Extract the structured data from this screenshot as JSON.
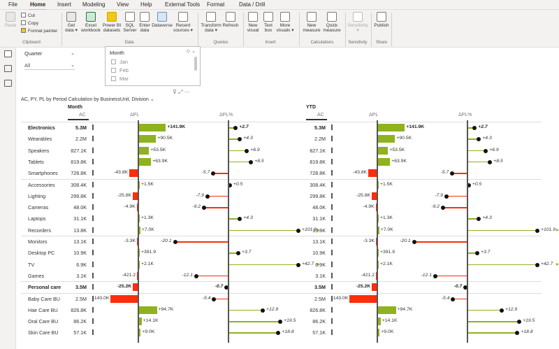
{
  "menu": [
    "File",
    "Home",
    "Insert",
    "Modeling",
    "View",
    "Help",
    "External Tools",
    "Format",
    "Data / Drill"
  ],
  "menu_active": "Home",
  "ribbon": {
    "paste": "Paste",
    "cut": "Cut",
    "copy": "Copy",
    "format_painter": "Format painter",
    "clipboard_group": "Clipboard",
    "get_data": "Get data ▾",
    "excel": "Excel workbook",
    "powerbi": "Power BI datasets",
    "sql": "SQL Server",
    "enter_data": "Enter data",
    "dataverse": "Dataverse",
    "recent": "Recent sources ▾",
    "data_group": "Data",
    "transform": "Transform data ▾",
    "refresh": "Refresh",
    "queries_group": "Queries",
    "new_visual": "New visual",
    "text_box": "Text box",
    "more_visuals": "More visuals ▾",
    "insert_group": "Insert",
    "new_measure": "New measure",
    "quick_measure": "Quick measure",
    "calc_group": "Calculations",
    "sensitivity": "Sensitivity ▾",
    "sensitivity_group": "Sensitivity",
    "publish": "Publish",
    "share_group": "Share"
  },
  "slicers": {
    "quarter_title": "Quarter",
    "quarter_value": "All",
    "month_title": "Month",
    "months": [
      "Jan",
      "Feb",
      "Mar"
    ]
  },
  "visual": {
    "title": "AC, PY, PL by Period Calculation by BusinessUnit, Division",
    "section_month": "Month",
    "section_ytd": "YTD",
    "col_ac": "AC",
    "col_dpl": "ΔPL",
    "col_dplp": "ΔPL%"
  },
  "chart_data": {
    "type": "table",
    "columns": [
      "AC",
      "ΔPL",
      "ΔPL%"
    ],
    "rows": [
      {
        "name": "Electronics",
        "bold": true,
        "ac": "5.3M",
        "dpl": 141.9,
        "dpl_label": "+141.9K",
        "pct": 2.7,
        "pct_label": "+2.7"
      },
      {
        "name": "Wearables",
        "ac": "2.2M",
        "dpl": 90.5,
        "dpl_label": "+90.5K",
        "pct": 4.3,
        "pct_label": "+4.3"
      },
      {
        "name": "Speakers",
        "ac": "827.1K",
        "dpl": 53.5,
        "dpl_label": "+53.5K",
        "pct": 6.9,
        "pct_label": "+6.9"
      },
      {
        "name": "Tablets",
        "ac": "819.8K",
        "dpl": 63.9,
        "dpl_label": "+63.9K",
        "pct": 8.5,
        "pct_label": "+8.5"
      },
      {
        "name": "Smartphones",
        "ac": "728.8K",
        "dpl": -43.8,
        "dpl_label": "-43.8K",
        "pct": -5.7,
        "pct_label": "-5.7"
      },
      {
        "name": "Accessories",
        "ac": "308.4K",
        "dpl": 1.5,
        "dpl_label": "+1.5K",
        "pct": 0.5,
        "pct_label": "+0.5"
      },
      {
        "name": "Lighting",
        "ac": "299.8K",
        "dpl": -25.8,
        "dpl_label": "-25.8K",
        "pct": -7.9,
        "pct_label": "-7.9"
      },
      {
        "name": "Cameras",
        "ac": "48.0K",
        "dpl": -4.9,
        "dpl_label": "-4.9K",
        "pct": -9.2,
        "pct_label": "-9.2"
      },
      {
        "name": "Laptops",
        "ac": "31.1K",
        "dpl": 1.3,
        "dpl_label": "+1.3K",
        "pct": 4.3,
        "pct_label": "+4.3"
      },
      {
        "name": "Recorders",
        "ac": "13.8K",
        "dpl": 7.0,
        "dpl_label": "+7.0K",
        "pct": 101.9,
        "pct_label": "+101.9"
      },
      {
        "name": "Monitors",
        "ac": "13.1K",
        "dpl": -3.3,
        "dpl_label": "-3.3K",
        "pct": -20.1,
        "pct_label": "-20.1"
      },
      {
        "name": "Desktop PC",
        "ac": "10.9K",
        "dpl": 0.3919,
        "dpl_label": "+391.9",
        "pct": 3.7,
        "pct_label": "+3.7"
      },
      {
        "name": "TV",
        "ac": "6.9K",
        "dpl": 2.1,
        "dpl_label": "+2.1K",
        "pct": 42.7,
        "pct_label": "+42.7"
      },
      {
        "name": "Games",
        "ac": "3.1K",
        "dpl": -0.4212,
        "dpl_label": "-421.2",
        "pct": -12.1,
        "pct_label": "-12.1"
      },
      {
        "name": "Personal care",
        "bold": true,
        "ac": "3.5M",
        "dpl": -25.2,
        "dpl_label": "-25.2K",
        "pct": -0.7,
        "pct_label": "-0.7"
      },
      {
        "name": "Baby Care BU",
        "ac": "2.5M",
        "dpl": -143.0,
        "dpl_label": "-143.0K",
        "pct": -5.4,
        "pct_label": "-5.4"
      },
      {
        "name": "Hair Care BU",
        "ac": "826.8K",
        "dpl": 94.7,
        "dpl_label": "+94.7K",
        "pct": 12.9,
        "pct_label": "+12.9"
      },
      {
        "name": "Oral Care BU",
        "ac": "86.2K",
        "dpl": 14.1,
        "dpl_label": "+14.1K",
        "pct": 19.5,
        "pct_label": "+19.5"
      },
      {
        "name": "Skin Care BU",
        "ac": "57.1K",
        "dpl": 9.0,
        "dpl_label": "+9.0K",
        "pct": 18.8,
        "pct_label": "+18.8"
      }
    ]
  },
  "colors": {
    "positive": "#8fb21f",
    "negative": "#ff2d0a",
    "accent": "#f2c811"
  }
}
